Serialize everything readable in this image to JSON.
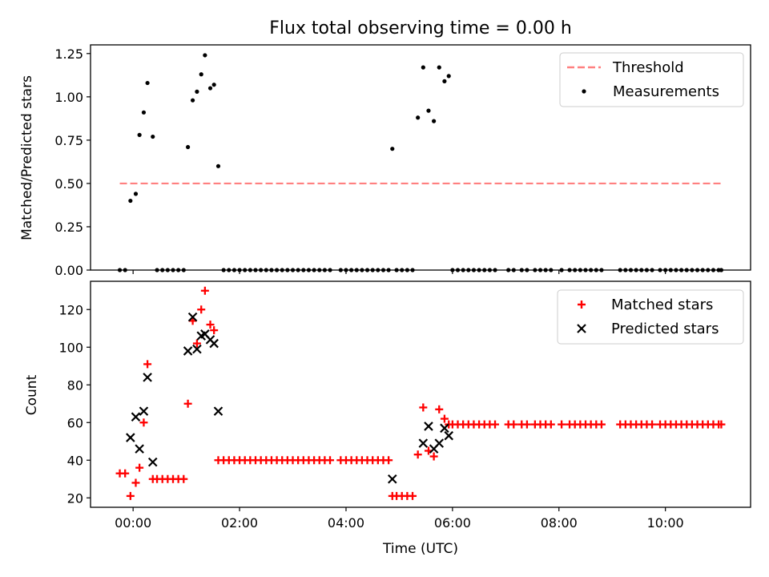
{
  "title": "Flux total observing time = 0.00 h",
  "xlabel": "Time (UTC)",
  "x_ticks": [
    "00:00",
    "02:00",
    "04:00",
    "06:00",
    "08:00",
    "10:00"
  ],
  "colors": {
    "threshold": "#ff8080",
    "measurements": "#000000",
    "matched": "#ff0000",
    "predicted": "#000000"
  },
  "chart_data": [
    {
      "type": "scatter",
      "ylabel": "Matched/Predicted stars",
      "xlim": [
        -0.8,
        11.6
      ],
      "ylim": [
        0,
        1.3
      ],
      "y_ticks": [
        "0.00",
        "0.25",
        "0.50",
        "0.75",
        "1.00",
        "1.25"
      ],
      "legend_position": "upper right",
      "threshold": {
        "name": "Threshold",
        "x": [
          -0.25,
          11.05
        ],
        "y": 0.5
      },
      "series": [
        {
          "name": "Measurements",
          "x": [
            -0.25,
            -0.15,
            -0.05,
            0.05,
            0.12,
            0.2,
            0.27,
            0.37,
            0.45,
            0.55,
            0.65,
            0.75,
            0.85,
            0.95,
            1.03,
            1.12,
            1.2,
            1.28,
            1.35,
            1.45,
            1.52,
            1.6,
            1.7,
            1.8,
            1.9,
            2.0,
            2.1,
            2.2,
            2.3,
            2.4,
            2.5,
            2.6,
            2.7,
            2.8,
            2.9,
            3.0,
            3.1,
            3.2,
            3.3,
            3.4,
            3.5,
            3.6,
            3.7,
            3.9,
            4.0,
            4.1,
            4.2,
            4.3,
            4.4,
            4.5,
            4.6,
            4.7,
            4.8,
            4.87,
            4.95,
            5.05,
            5.15,
            5.25,
            5.35,
            5.45,
            5.55,
            5.65,
            5.75,
            5.85,
            5.93,
            6.0,
            6.1,
            6.2,
            6.3,
            6.4,
            6.5,
            6.6,
            6.7,
            6.8,
            7.05,
            7.15,
            7.3,
            7.4,
            7.55,
            7.65,
            7.75,
            7.85,
            8.05,
            8.2,
            8.3,
            8.4,
            8.5,
            8.6,
            8.7,
            8.8,
            9.15,
            9.25,
            9.35,
            9.45,
            9.55,
            9.65,
            9.75,
            9.9,
            10.0,
            10.1,
            10.2,
            10.3,
            10.4,
            10.5,
            10.6,
            10.7,
            10.8,
            10.9,
            11.0,
            11.05
          ],
          "y": [
            0,
            0,
            0.4,
            0.44,
            0.78,
            0.91,
            1.08,
            0.77,
            0,
            0,
            0,
            0,
            0,
            0,
            0.71,
            0.98,
            1.03,
            1.13,
            1.24,
            1.05,
            1.07,
            0.6,
            0,
            0,
            0,
            0,
            0,
            0,
            0,
            0,
            0,
            0,
            0,
            0,
            0,
            0,
            0,
            0,
            0,
            0,
            0,
            0,
            0,
            0,
            0,
            0,
            0,
            0,
            0,
            0,
            0,
            0,
            0,
            0.7,
            0,
            0,
            0,
            0,
            0.88,
            1.17,
            0.92,
            0.86,
            1.17,
            1.09,
            1.12,
            0,
            0,
            0,
            0,
            0,
            0,
            0,
            0,
            0,
            0,
            0,
            0,
            0,
            0,
            0,
            0,
            0,
            0,
            0,
            0,
            0,
            0,
            0,
            0,
            0,
            0,
            0,
            0,
            0,
            0,
            0,
            0,
            0,
            0,
            0,
            0,
            0,
            0,
            0,
            0,
            0,
            0,
            0,
            0,
            0
          ]
        }
      ]
    },
    {
      "type": "scatter",
      "ylabel": "Count",
      "xlabel": "Time (UTC)",
      "xlim": [
        -0.8,
        11.6
      ],
      "ylim": [
        15,
        135
      ],
      "y_ticks": [
        "20",
        "40",
        "60",
        "80",
        "100",
        "120"
      ],
      "legend_position": "upper right",
      "series": [
        {
          "name": "Matched stars",
          "x": [
            -0.25,
            -0.15,
            -0.05,
            0.05,
            0.12,
            0.2,
            0.27,
            0.37,
            0.45,
            0.55,
            0.65,
            0.75,
            0.85,
            0.95,
            1.03,
            1.12,
            1.2,
            1.28,
            1.35,
            1.45,
            1.52,
            1.6,
            1.7,
            1.8,
            1.9,
            2.0,
            2.1,
            2.2,
            2.3,
            2.4,
            2.5,
            2.6,
            2.7,
            2.8,
            2.9,
            3.0,
            3.1,
            3.2,
            3.3,
            3.4,
            3.5,
            3.6,
            3.7,
            3.9,
            4.0,
            4.1,
            4.2,
            4.3,
            4.4,
            4.5,
            4.6,
            4.7,
            4.8,
            4.87,
            4.95,
            5.05,
            5.15,
            5.25,
            5.35,
            5.45,
            5.55,
            5.65,
            5.75,
            5.85,
            5.93,
            6.0,
            6.1,
            6.2,
            6.3,
            6.4,
            6.5,
            6.6,
            6.7,
            6.8,
            7.05,
            7.15,
            7.3,
            7.4,
            7.55,
            7.65,
            7.75,
            7.85,
            8.05,
            8.2,
            8.3,
            8.4,
            8.5,
            8.6,
            8.7,
            8.8,
            9.15,
            9.25,
            9.35,
            9.45,
            9.55,
            9.65,
            9.75,
            9.9,
            10.0,
            10.1,
            10.2,
            10.3,
            10.4,
            10.5,
            10.6,
            10.7,
            10.8,
            10.9,
            11.0,
            11.05
          ],
          "y": [
            33,
            33,
            21,
            28,
            36,
            60,
            91,
            30,
            30,
            30,
            30,
            30,
            30,
            30,
            70,
            114,
            102,
            120,
            130,
            112,
            109,
            40,
            40,
            40,
            40,
            40,
            40,
            40,
            40,
            40,
            40,
            40,
            40,
            40,
            40,
            40,
            40,
            40,
            40,
            40,
            40,
            40,
            40,
            40,
            40,
            40,
            40,
            40,
            40,
            40,
            40,
            40,
            40,
            21,
            21,
            21,
            21,
            21,
            43,
            68,
            45,
            42,
            67,
            62,
            59,
            59,
            59,
            59,
            59,
            59,
            59,
            59,
            59,
            59,
            59,
            59,
            59,
            59,
            59,
            59,
            59,
            59,
            59,
            59,
            59,
            59,
            59,
            59,
            59,
            59,
            59,
            59,
            59,
            59,
            59,
            59,
            59,
            59,
            59,
            59,
            59,
            59,
            59,
            59,
            59,
            59,
            59,
            59,
            59,
            59
          ]
        },
        {
          "name": "Predicted stars",
          "x": [
            -0.05,
            0.05,
            0.12,
            0.2,
            0.27,
            0.37,
            1.03,
            1.12,
            1.2,
            1.28,
            1.35,
            1.45,
            1.52,
            1.6,
            4.87,
            5.45,
            5.55,
            5.65,
            5.75,
            5.85,
            5.93
          ],
          "y": [
            52,
            63,
            46,
            66,
            84,
            39,
            98,
            116,
            99,
            106,
            107,
            104,
            102,
            66,
            30,
            49,
            58,
            46,
            49,
            57,
            53
          ]
        }
      ]
    }
  ]
}
